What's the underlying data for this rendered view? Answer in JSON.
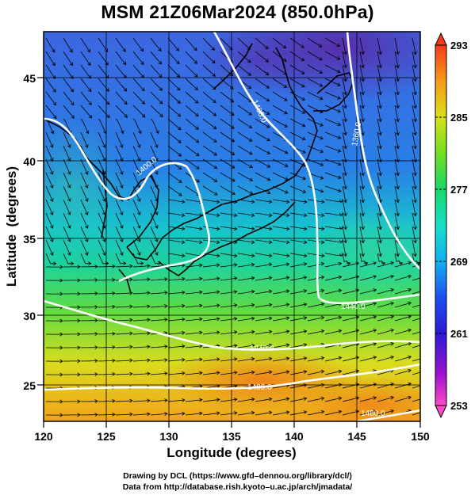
{
  "title": "MSM 21Z06Mar2024 (850.0hPa)",
  "xlabel": "Longitude (degrees)",
  "ylabel": "Latitude  (degrees)",
  "x_ticks": [
    "120",
    "125",
    "130",
    "135",
    "140",
    "145",
    "150"
  ],
  "y_ticks": [
    "25",
    "30",
    "35",
    "40",
    "45"
  ],
  "colorbar": {
    "min": 253,
    "max": 293,
    "labels": [
      "293",
      "285",
      "277",
      "269",
      "261",
      "253"
    ]
  },
  "contour_labels": [
    "1400.0",
    "1400.0",
    "1360.0",
    "1440.0",
    "1480.0",
    "1480.0",
    "1440.0"
  ],
  "credits": {
    "line1": "Drawing by DCL (https://www.gfd–dennou.org/library/dcl/)",
    "line2": "Data from http://database.rish.kyoto–u.ac.jp/arch/jmadata/"
  }
}
